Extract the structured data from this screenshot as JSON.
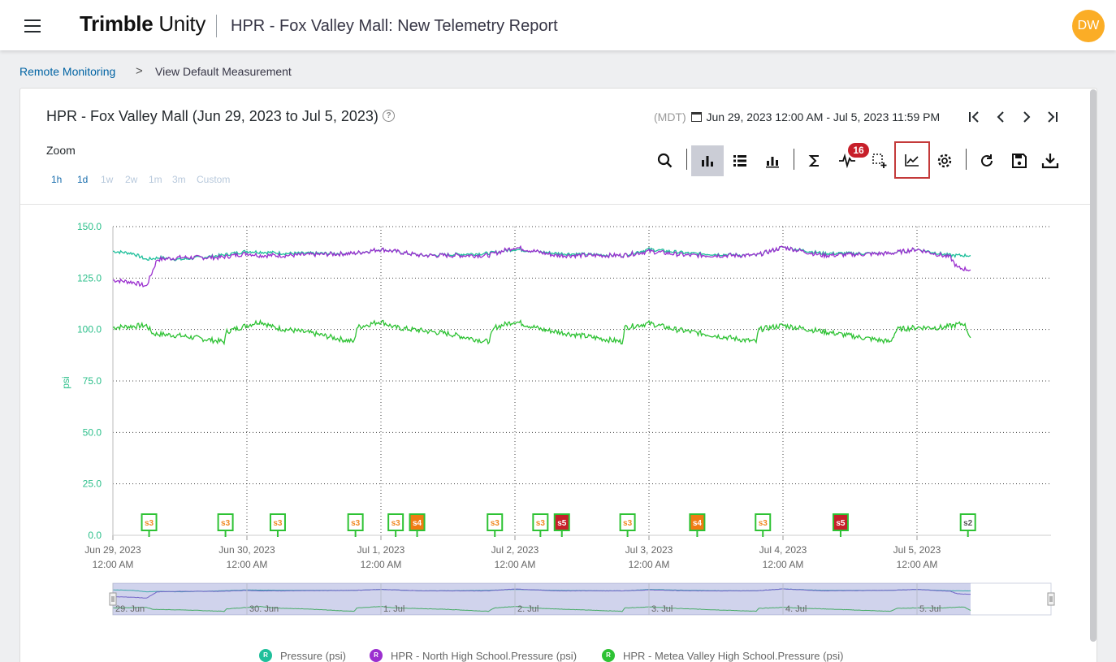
{
  "header": {
    "logo_bold": "Trimble",
    "logo_light": "Unity",
    "title": "HPR - Fox Valley Mall: New Telemetry Report",
    "avatar_initials": "DW"
  },
  "breadcrumb": {
    "parent": "Remote Monitoring",
    "separator": ">",
    "current": "View Default Measurement"
  },
  "card": {
    "title": "HPR - Fox Valley Mall (Jun 29, 2023 to Jul 5, 2023)",
    "help": "?",
    "zoom_label": "Zoom",
    "zoom_options": [
      {
        "label": "1h",
        "enabled": true
      },
      {
        "label": "1d",
        "enabled": true
      },
      {
        "label": "1w",
        "enabled": false
      },
      {
        "label": "2w",
        "enabled": false
      },
      {
        "label": "1m",
        "enabled": false
      },
      {
        "label": "3m",
        "enabled": false
      },
      {
        "label": "Custom",
        "enabled": false
      }
    ],
    "timezone": "(MDT)",
    "date_range": "Jun 29, 2023 12:00 AM - Jul 5, 2023 11:59 PM",
    "nav": [
      "first-icon",
      "prev-icon",
      "next-icon",
      "last-icon"
    ],
    "toolbar": [
      {
        "name": "search-icon",
        "active": false
      },
      {
        "name": "bar-chart-icon",
        "active": true
      },
      {
        "name": "list-icon",
        "active": false
      },
      {
        "name": "stacked-bar-icon",
        "active": false
      },
      {
        "name": "sigma-icon",
        "active": false
      },
      {
        "name": "pulse-icon",
        "active": false
      },
      {
        "name": "add-selection-icon",
        "active": false
      },
      {
        "name": "line-chart-icon",
        "active": false
      },
      {
        "name": "gear-icon",
        "active": false
      },
      {
        "name": "refresh-icon",
        "active": false
      },
      {
        "name": "save-icon",
        "active": false
      },
      {
        "name": "download-icon",
        "active": false
      }
    ],
    "alarm_count": "16"
  },
  "colors": {
    "pressure": "#1fbf9b",
    "north": "#9b2fcf",
    "metea": "#2ec234",
    "accent": "#0063a3",
    "alarm": "#c71f2a"
  },
  "chart_data": {
    "type": "line",
    "ylabel": "psi",
    "ylim": [
      0,
      150
    ],
    "yticks": [
      "150.0",
      "125.0",
      "100.0",
      "75.0",
      "50.0",
      "25.0",
      "0.0"
    ],
    "x_tick_dates": [
      "Jun 29, 2023",
      "Jun 30, 2023",
      "Jul 1, 2023",
      "Jul 2, 2023",
      "Jul 3, 2023",
      "Jul 4, 2023",
      "Jul 5, 2023"
    ],
    "x_tick_times": [
      "12:00 AM",
      "12:00 AM",
      "12:00 AM",
      "12:00 AM",
      "12:00 AM",
      "12:00 AM",
      "12:00 AM"
    ],
    "navigator_labels": [
      "29. Jun",
      "30. Jun",
      "1. Jul",
      "2. Jul",
      "3. Jul",
      "4. Jul",
      "5. Jul"
    ],
    "series": [
      {
        "name": "Pressure (psi)",
        "legend_badge": "R",
        "x_days": [
          0,
          0.15,
          0.25,
          0.35,
          0.5,
          0.8,
          1.0,
          1.3,
          1.8,
          2.0,
          2.3,
          2.8,
          3.0,
          3.3,
          3.8,
          4.0,
          4.3,
          4.8,
          5.0,
          5.3,
          5.8,
          6.0,
          6.25,
          6.4
        ],
        "y": [
          138,
          137,
          134,
          135,
          134,
          136,
          138,
          137,
          137,
          139,
          136,
          137,
          139,
          137,
          136,
          139,
          137,
          136,
          140,
          137,
          137,
          139,
          136,
          136
        ]
      },
      {
        "name": "HPR - North High School.Pressure (psi)",
        "legend_badge": "R",
        "x_days": [
          0,
          0.15,
          0.25,
          0.33,
          0.5,
          0.8,
          1.0,
          1.1,
          1.3,
          1.8,
          2.0,
          2.3,
          2.8,
          3.0,
          3.3,
          3.8,
          4.0,
          4.3,
          4.8,
          5.0,
          5.3,
          5.8,
          6.0,
          6.25,
          6.3,
          6.4
        ],
        "y": [
          124,
          123,
          121,
          134,
          135,
          135,
          137,
          136,
          136,
          137,
          139,
          136,
          136,
          140,
          136,
          136,
          138,
          136,
          136,
          140,
          136,
          137,
          139,
          135,
          130,
          129
        ]
      },
      {
        "name": "HPR - Metea Valley High School.Pressure (psi)",
        "legend_badge": "R",
        "x_days": [
          0,
          0.25,
          0.3,
          0.5,
          0.83,
          0.85,
          1.0,
          1.1,
          1.2,
          1.5,
          1.8,
          1.82,
          2.0,
          2.1,
          2.5,
          2.8,
          2.85,
          3.0,
          3.2,
          3.5,
          3.8,
          3.82,
          4.0,
          4.2,
          4.5,
          4.8,
          4.82,
          5.0,
          5.2,
          5.5,
          5.8,
          5.85,
          6.0,
          6.2,
          6.35,
          6.4
        ],
        "y": [
          101,
          102,
          98,
          97,
          94,
          99,
          102,
          104,
          101,
          98,
          94,
          101,
          104,
          101,
          98,
          94,
          101,
          104,
          100,
          97,
          94,
          101,
          103,
          100,
          97,
          94,
          100,
          102,
          100,
          97,
          94,
          100,
          101,
          101,
          103,
          96
        ]
      }
    ],
    "event_markers": [
      {
        "label": "s3",
        "day": 0.27,
        "severity": "s3"
      },
      {
        "label": "s3",
        "day": 0.84,
        "severity": "s3"
      },
      {
        "label": "s3",
        "day": 1.23,
        "severity": "s3"
      },
      {
        "label": "s3",
        "day": 1.81,
        "severity": "s3"
      },
      {
        "label": "s3",
        "day": 2.11,
        "severity": "s3"
      },
      {
        "label": "s4",
        "day": 2.27,
        "severity": "s4"
      },
      {
        "label": "s3",
        "day": 2.85,
        "severity": "s3"
      },
      {
        "label": "s3",
        "day": 3.19,
        "severity": "s3"
      },
      {
        "label": "s5",
        "day": 3.35,
        "severity": "s5"
      },
      {
        "label": "s3",
        "day": 3.84,
        "severity": "s3"
      },
      {
        "label": "s4",
        "day": 4.36,
        "severity": "s4"
      },
      {
        "label": "s3",
        "day": 4.85,
        "severity": "s3"
      },
      {
        "label": "s5",
        "day": 5.43,
        "severity": "s5"
      },
      {
        "label": "s2",
        "day": 6.38,
        "severity": "s2"
      }
    ]
  }
}
